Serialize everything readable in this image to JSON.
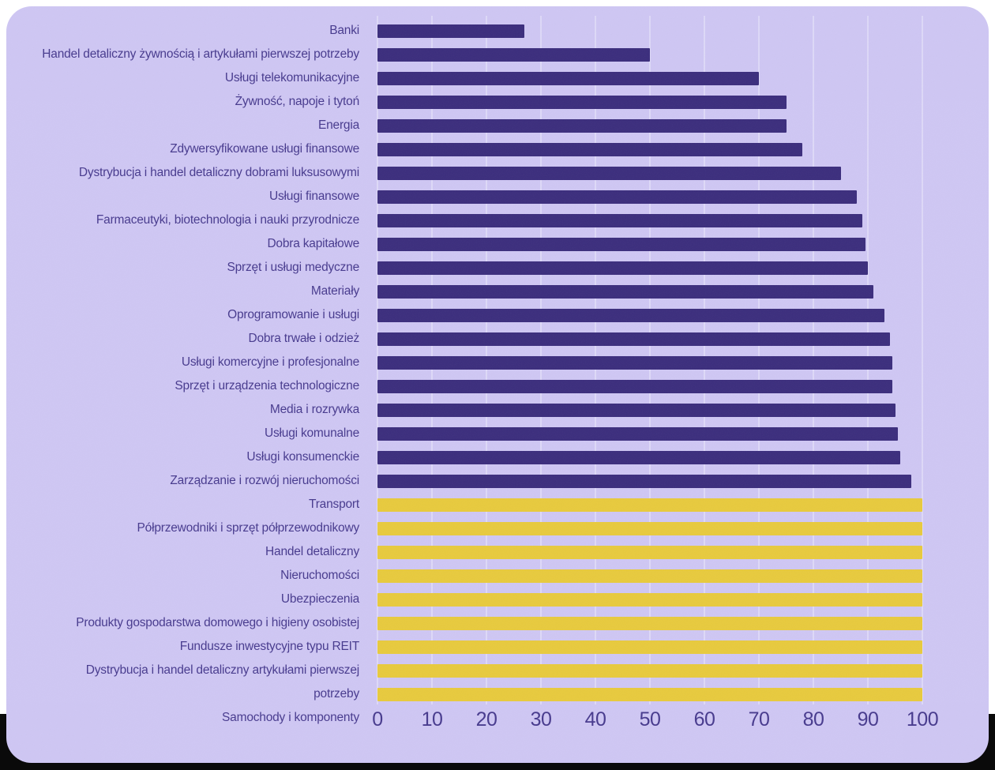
{
  "chart_data": {
    "type": "bar",
    "orientation": "horizontal",
    "title": "",
    "xlabel": "",
    "ylabel": "",
    "xlim": [
      0,
      100
    ],
    "x_ticks": [
      0,
      10,
      20,
      30,
      40,
      50,
      60,
      70,
      80,
      90,
      100
    ],
    "grid": "vertical-gridlines-behind-bars",
    "legend": "none",
    "bars": [
      {
        "label": "Banki",
        "value": 27,
        "color": "purple"
      },
      {
        "label": "Handel detaliczny żywnością i artykułami pierwszej potrzeby",
        "value": 50,
        "color": "purple"
      },
      {
        "label": "Usługi telekomunikacyjne",
        "value": 70,
        "color": "purple"
      },
      {
        "label": "Żywność, napoje i tytoń",
        "value": 75,
        "color": "purple"
      },
      {
        "label": "Energia",
        "value": 75,
        "color": "purple"
      },
      {
        "label": "Zdywersyfikowane usługi finansowe",
        "value": 78,
        "color": "purple"
      },
      {
        "label": "Dystrybucja i handel detaliczny dobrami luksusowymi",
        "value": 85,
        "color": "purple"
      },
      {
        "label": "Usługi finansowe",
        "value": 88,
        "color": "purple"
      },
      {
        "label": "Farmaceutyki, biotechnologia i nauki przyrodnicze",
        "value": 89,
        "color": "purple"
      },
      {
        "label": "Dobra kapitałowe",
        "value": 89.5,
        "color": "purple"
      },
      {
        "label": "Sprzęt i usługi medyczne",
        "value": 90,
        "color": "purple"
      },
      {
        "label": "Materiały",
        "value": 91,
        "color": "purple"
      },
      {
        "label": "Oprogramowanie i usługi",
        "value": 93,
        "color": "purple"
      },
      {
        "label": "Dobra trwałe i odzież",
        "value": 94,
        "color": "purple"
      },
      {
        "label": "Usługi komercyjne i profesjonalne",
        "value": 94.5,
        "color": "purple"
      },
      {
        "label": "Sprzęt i urządzenia technologiczne",
        "value": 94.5,
        "color": "purple"
      },
      {
        "label": "Media i rozrywka",
        "value": 95,
        "color": "purple"
      },
      {
        "label": "Usługi komunalne",
        "value": 95.5,
        "color": "purple"
      },
      {
        "label": "Usługi konsumenckie",
        "value": 96,
        "color": "purple"
      },
      {
        "label": "Zarządzanie i rozwój nieruchomości",
        "value": 98,
        "color": "purple"
      },
      {
        "label": "Transport",
        "value": 100,
        "color": "yellow"
      },
      {
        "label": "Półprzewodniki i sprzęt półprzewodnikowy",
        "value": 100,
        "color": "yellow"
      },
      {
        "label": "Handel detaliczny",
        "value": 100,
        "color": "yellow"
      },
      {
        "label": "Nieruchomości",
        "value": 100,
        "color": "yellow"
      },
      {
        "label": "Ubezpieczenia",
        "value": 100,
        "color": "yellow"
      },
      {
        "label": "Produkty gospodarstwa domowego i higieny osobistej",
        "value": 100,
        "color": "yellow"
      },
      {
        "label": "Fundusze inwestycyjne typu REIT",
        "value": 100,
        "color": "yellow"
      },
      {
        "label": "Dystrybucja i handel detaliczny artykułami pierwszej potrzeby",
        "value": 100,
        "color": "yellow"
      },
      {
        "label": "Samochody i komponenty",
        "value": 100,
        "color": "yellow"
      }
    ]
  },
  "labels_column": {
    "lines": [
      "Banki",
      "Handel detaliczny żywnością i artykułami pierwszej potrzeby",
      "Usługi telekomunikacyjne",
      "Żywność, napoje i tytoń",
      "Energia",
      "Zdywersyfikowane usługi finansowe",
      "Dystrybucja i handel detaliczny dobrami luksusowymi",
      "Usługi finansowe",
      "Farmaceutyki, biotechnologia i nauki przyrodnicze",
      "Dobra kapitałowe",
      "Sprzęt i usługi medyczne",
      "Materiały",
      "Oprogramowanie i usługi",
      "Dobra trwałe i odzież",
      "Usługi komercyjne i profesjonalne",
      "Sprzęt i urządzenia technologiczne",
      "Media i rozrywka",
      "Usługi komunalne",
      "Usługi konsumenckie",
      "Zarządzanie i rozwój nieruchomości",
      "Transport",
      "Półprzewodniki i sprzęt półprzewodnikowy",
      "Handel detaliczny",
      "Nieruchomości",
      "Ubezpieczenia",
      "Produkty gospodarstwa domowego i higieny osobistej",
      "Fundusze inwestycyjne typu REIT",
      "Dystrybucja i handel detaliczny artykułami pierwszej",
      "potrzeby",
      "Samochody i komponenty"
    ]
  },
  "axis": {
    "tick_labels": [
      "0",
      "10",
      "20",
      "30",
      "40",
      "50",
      "60",
      "70",
      "80",
      "90",
      "100"
    ]
  },
  "colors": {
    "purple_bar": "#3b2d7d",
    "yellow_bar": "#e8ca3d",
    "panel_bg": "#cfc7f4",
    "label_text": "#473a8e",
    "axis_text": "#473a8e",
    "gridline": "#ded9f8",
    "page_bg": "#ffffff",
    "bottom_band": "#0a0a0a"
  }
}
